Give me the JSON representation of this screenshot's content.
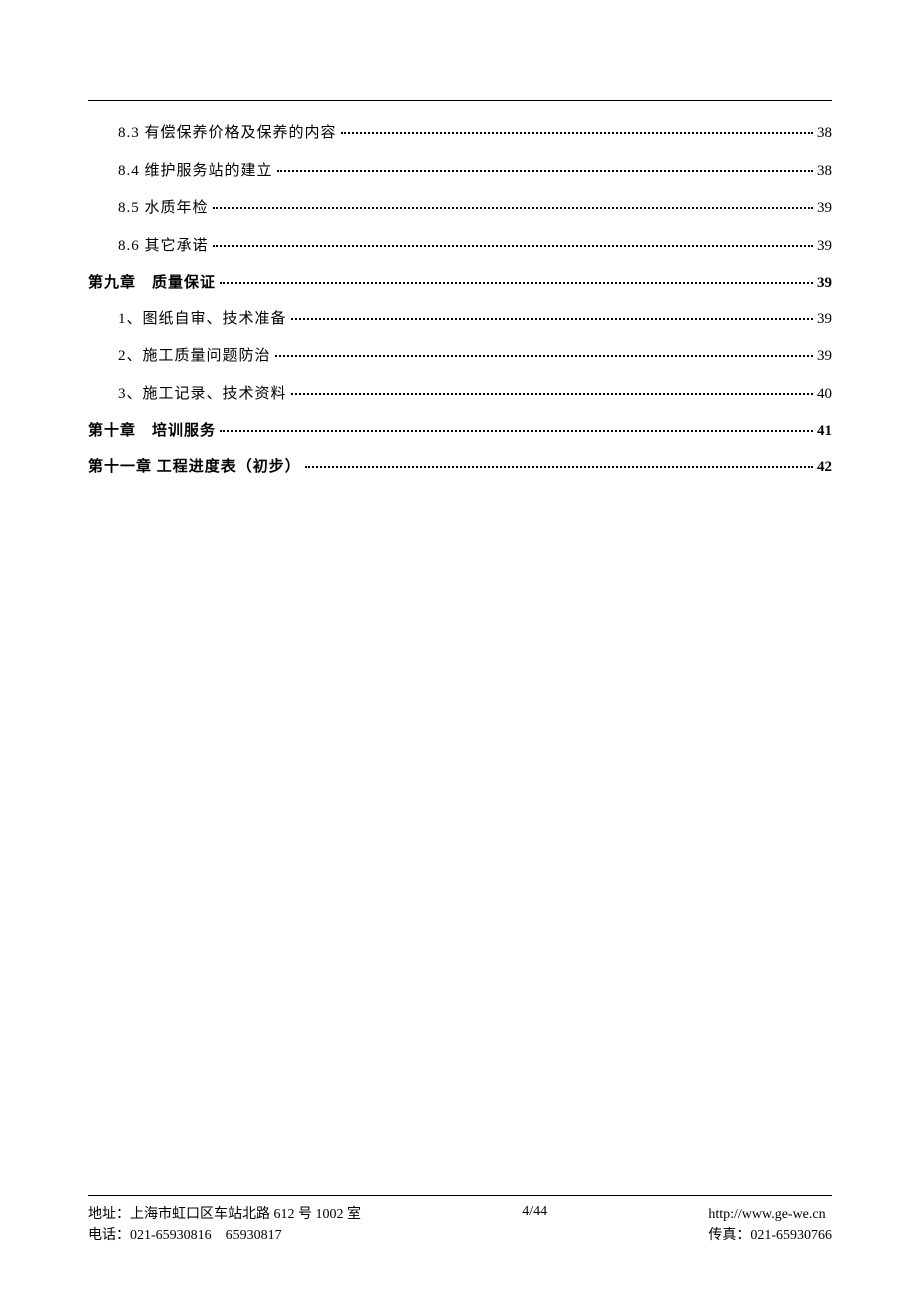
{
  "toc": {
    "entries": [
      {
        "level": "sub",
        "label": "8.3 有偿保养价格及保养的内容",
        "page": "38"
      },
      {
        "level": "sub",
        "label": "8.4 维护服务站的建立",
        "page": "38"
      },
      {
        "level": "sub",
        "label": "8.5 水质年检",
        "page": "39"
      },
      {
        "level": "sub",
        "label": "8.6 其它承诺",
        "page": "39"
      },
      {
        "level": "chapter",
        "label": "第九章　质量保证",
        "page": "39"
      },
      {
        "level": "sub",
        "label": "1、图纸自审、技术准备",
        "page": "39"
      },
      {
        "level": "sub",
        "label": "2、施工质量问题防治",
        "page": "39"
      },
      {
        "level": "sub",
        "label": "3、施工记录、技术资料",
        "page": "40"
      },
      {
        "level": "chapter",
        "label": "第十章　培训服务",
        "page": "41"
      },
      {
        "level": "chapter",
        "label": "第十一章 工程进度表（初步）",
        "page": "42"
      }
    ]
  },
  "footer": {
    "address": "地址：上海市虹口区车站北路 612 号 1002 室",
    "phone": "电话：021-65930816　65930817",
    "website": "http://www.ge-we.cn",
    "fax": "传真：021-65930766",
    "page_indicator": "4/44"
  }
}
